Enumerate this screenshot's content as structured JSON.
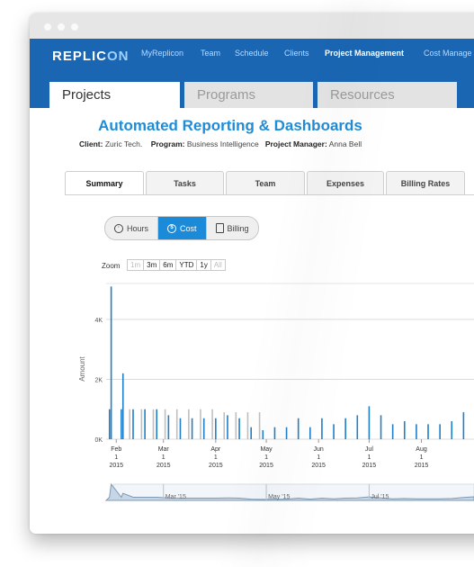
{
  "window": {
    "controls": [
      "close",
      "minimize",
      "maximize"
    ]
  },
  "navbar": {
    "brand_prefix": "REPLIC",
    "brand_suffix": "ON",
    "links": [
      {
        "label": "MyReplicon",
        "active": false
      },
      {
        "label": "Team",
        "active": false
      },
      {
        "label": "Schedule",
        "active": false
      },
      {
        "label": "Clients",
        "active": false
      },
      {
        "label": "Project Management",
        "active": true
      },
      {
        "label": "Cost Manage",
        "active": false
      }
    ],
    "tabs": [
      {
        "label": "Projects",
        "active": true
      },
      {
        "label": "Programs",
        "active": false
      },
      {
        "label": "Resources",
        "active": false
      }
    ]
  },
  "project": {
    "title": "Automated Reporting & Dashboards",
    "client_label": "Client:",
    "client": "Zuric Tech.",
    "program_label": "Program:",
    "program": "Business Intelligence",
    "manager_label": "Project Manager:",
    "manager": "Anna Bell"
  },
  "subtabs": [
    {
      "label": "Summary",
      "active": true
    },
    {
      "label": "Tasks",
      "active": false
    },
    {
      "label": "Team",
      "active": false
    },
    {
      "label": "Expenses",
      "active": false
    },
    {
      "label": "Billing Rates",
      "active": false
    }
  ],
  "metric_toggle": {
    "options": [
      {
        "label": "Hours",
        "icon": "clock-icon",
        "active": false
      },
      {
        "label": "Cost",
        "icon": "dollar-icon",
        "active": true
      },
      {
        "label": "Billing",
        "icon": "document-icon",
        "active": false
      }
    ]
  },
  "zoom": {
    "label": "Zoom",
    "options": [
      {
        "label": "1m",
        "enabled": false
      },
      {
        "label": "3m",
        "enabled": true
      },
      {
        "label": "6m",
        "enabled": true
      },
      {
        "label": "YTD",
        "enabled": true
      },
      {
        "label": "1y",
        "enabled": true
      },
      {
        "label": "All",
        "enabled": false
      }
    ]
  },
  "colors": {
    "accent": "#1b8ad8",
    "navbar": "#1a66b3",
    "title": "#1f8cd8",
    "bar": "#1f7fc8",
    "bar_secondary": "#bfbfbf"
  },
  "chart_data": {
    "type": "bar",
    "ylabel": "Amount",
    "y_ticks": [
      "0K",
      "2K",
      "4K"
    ],
    "ylim": [
      0,
      5200
    ],
    "x_ticks": [
      {
        "label": [
          "Feb",
          "1",
          "2015"
        ],
        "date": "2015-02-01"
      },
      {
        "label": [
          "Mar",
          "1",
          "2015"
        ],
        "date": "2015-03-01"
      },
      {
        "label": [
          "Apr",
          "1",
          "2015"
        ],
        "date": "2015-04-01"
      },
      {
        "label": [
          "May",
          "1",
          "2015"
        ],
        "date": "2015-05-01"
      },
      {
        "label": [
          "Jun",
          "1",
          "2015"
        ],
        "date": "2015-06-01"
      },
      {
        "label": [
          "Jul",
          "1",
          "2015"
        ],
        "date": "2015-07-01"
      },
      {
        "label": [
          "Aug",
          "1",
          "2015"
        ],
        "date": "2015-08-01"
      }
    ],
    "series": [
      {
        "color": "#1f7fc8",
        "points": [
          [
            "2015-01-28",
            1000
          ],
          [
            "2015-01-29",
            5100
          ],
          [
            "2015-02-04",
            1000
          ],
          [
            "2015-02-05",
            2200
          ],
          [
            "2015-02-11",
            1000
          ],
          [
            "2015-02-18",
            1000
          ],
          [
            "2015-02-25",
            1000
          ],
          [
            "2015-03-04",
            800
          ],
          [
            "2015-03-11",
            700
          ],
          [
            "2015-03-18",
            700
          ],
          [
            "2015-03-25",
            700
          ],
          [
            "2015-04-01",
            700
          ],
          [
            "2015-04-08",
            800
          ],
          [
            "2015-04-15",
            700
          ],
          [
            "2015-04-22",
            400
          ],
          [
            "2015-04-29",
            300
          ],
          [
            "2015-05-06",
            400
          ],
          [
            "2015-05-13",
            400
          ],
          [
            "2015-05-20",
            700
          ],
          [
            "2015-05-27",
            400
          ],
          [
            "2015-06-03",
            700
          ],
          [
            "2015-06-10",
            500
          ],
          [
            "2015-06-17",
            700
          ],
          [
            "2015-06-24",
            800
          ],
          [
            "2015-07-01",
            1100
          ],
          [
            "2015-07-08",
            800
          ],
          [
            "2015-07-15",
            500
          ],
          [
            "2015-07-22",
            600
          ],
          [
            "2015-07-29",
            500
          ],
          [
            "2015-08-05",
            500
          ],
          [
            "2015-08-12",
            500
          ],
          [
            "2015-08-19",
            600
          ],
          [
            "2015-08-26",
            900
          ]
        ]
      },
      {
        "color": "#bfbfbf",
        "points": [
          [
            "2015-02-09",
            1000
          ],
          [
            "2015-02-16",
            1000
          ],
          [
            "2015-02-23",
            1000
          ],
          [
            "2015-03-02",
            1000
          ],
          [
            "2015-03-09",
            1000
          ],
          [
            "2015-03-16",
            1000
          ],
          [
            "2015-03-23",
            1000
          ],
          [
            "2015-03-30",
            1000
          ],
          [
            "2015-04-06",
            900
          ],
          [
            "2015-04-13",
            900
          ],
          [
            "2015-04-20",
            900
          ],
          [
            "2015-04-27",
            900
          ]
        ]
      }
    ],
    "navigator_labels": [
      "Mar '15",
      "May '15",
      "Jul '15"
    ]
  }
}
